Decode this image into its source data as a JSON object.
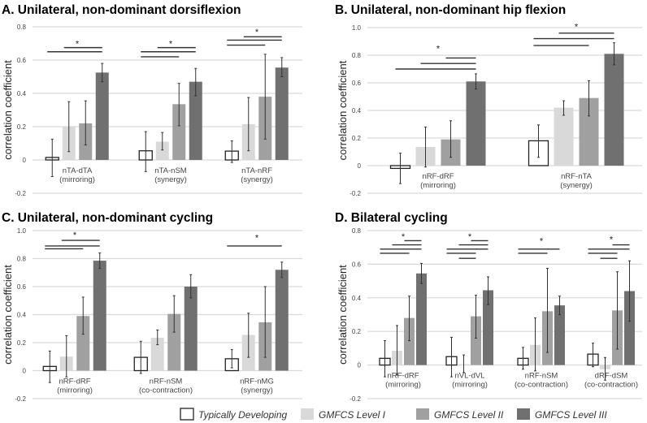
{
  "legend": [
    "Typically Developing",
    "GMFCS Level I",
    "GMFCS Level II",
    "GMFCS Level III"
  ],
  "colors": {
    "td_fill": "#ffffff",
    "td_stroke": "#222222",
    "l1": "#d9d9d9",
    "l2": "#a0a0a0",
    "l3": "#707070",
    "grid": "#d9d9d9",
    "err": "#333333",
    "sig": "#333333"
  },
  "chart_data": [
    {
      "type": "bar",
      "title": "A. Unilateral, non-dominant dorsiflexion",
      "ylabel": "correlation coefficient",
      "ylim": [
        -0.2,
        0.8
      ],
      "yticks": [
        "-0.2",
        "0",
        "0.2",
        "0.4",
        "0.6",
        "0.8"
      ],
      "grid": true,
      "groups": [
        {
          "label": "nTA-dTA",
          "sublabel": "(mirroring)",
          "values": [
            0.015,
            0.2,
            0.22,
            0.525
          ],
          "err": [
            [
              -0.1,
              0.125
            ],
            [
              0.05,
              0.35
            ],
            [
              0.09,
              0.355
            ],
            [
              0.47,
              0.58
            ]
          ],
          "sig": [
            [
              1,
              3,
              0.675
            ],
            [
              0,
              3,
              0.65
            ]
          ],
          "star": 0.7
        },
        {
          "label": "nTA-nSM",
          "sublabel": "(synergy)",
          "values": [
            0.055,
            0.11,
            0.335,
            0.47
          ],
          "err": [
            [
              -0.07,
              0.17
            ],
            [
              0.06,
              0.165
            ],
            [
              0.205,
              0.46
            ],
            [
              0.385,
              0.55
            ]
          ],
          "sig": [
            [
              1,
              3,
              0.675
            ],
            [
              0,
              3,
              0.65
            ],
            [
              0,
              2,
              0.62
            ]
          ],
          "star": 0.7
        },
        {
          "label": "nTA-nRF",
          "sublabel": "(synergy)",
          "values": [
            0.053,
            0.215,
            0.38,
            0.555
          ],
          "err": [
            [
              -0.015,
              0.115
            ],
            [
              0.055,
              0.375
            ],
            [
              0.125,
              0.635
            ],
            [
              0.5,
              0.615
            ]
          ],
          "sig": [
            [
              1,
              3,
              0.74
            ],
            [
              0,
              3,
              0.72
            ],
            [
              0,
              2,
              0.69
            ]
          ],
          "star": 0.77
        }
      ]
    },
    {
      "type": "bar",
      "title": "B. Unilateral, non-dominant hip flexion",
      "ylabel": "correlation coefficient",
      "ylim": [
        -0.2,
        1.0
      ],
      "yticks": [
        "-0.2",
        "0",
        "0.2",
        "0.4",
        "0.6",
        "0.8",
        "1.0"
      ],
      "grid": true,
      "groups": [
        {
          "label": "nRF-dRF",
          "sublabel": "(mirroring)",
          "values": [
            -0.02,
            0.135,
            0.19,
            0.61
          ],
          "err": [
            [
              -0.13,
              0.09
            ],
            [
              -0.01,
              0.28
            ],
            [
              0.06,
              0.325
            ],
            [
              0.555,
              0.665
            ]
          ],
          "sig": [
            [
              2,
              3,
              0.78
            ],
            [
              1,
              3,
              0.74
            ],
            [
              0,
              3,
              0.7
            ]
          ],
          "star": 0.85
        },
        {
          "label": "nRF-nTA",
          "sublabel": "(synergy)",
          "values": [
            0.18,
            0.42,
            0.49,
            0.81
          ],
          "err": [
            [
              0.06,
              0.295
            ],
            [
              0.365,
              0.47
            ],
            [
              0.36,
              0.615
            ],
            [
              0.73,
              0.89
            ]
          ],
          "sig": [
            [
              1,
              3,
              0.96
            ],
            [
              0,
              3,
              0.92
            ],
            [
              0,
              2,
              0.87
            ]
          ],
          "star": 1.01
        }
      ]
    },
    {
      "type": "bar",
      "title": "C. Unilateral, non-dominant cycling",
      "ylabel": "correlation coefficient",
      "ylim": [
        -0.2,
        1.0
      ],
      "yticks": [
        "-0.2",
        "0",
        "0.2",
        "0.4",
        "0.6",
        "0.8",
        "1.0"
      ],
      "grid": true,
      "groups": [
        {
          "label": "nRF-dRF",
          "sublabel": "(mirroring)",
          "values": [
            0.03,
            0.1,
            0.39,
            0.785
          ],
          "err": [
            [
              -0.085,
              0.14
            ],
            [
              -0.045,
              0.25
            ],
            [
              0.26,
              0.525
            ],
            [
              0.73,
              0.84
            ]
          ],
          "sig": [
            [
              1,
              3,
              0.93
            ],
            [
              0,
              3,
              0.89
            ],
            [
              0,
              2,
              0.87
            ]
          ],
          "star": 0.97
        },
        {
          "label": "nRF-nSM",
          "sublabel": "(co-contraction)",
          "values": [
            0.095,
            0.235,
            0.405,
            0.6
          ],
          "err": [
            [
              -0.02,
              0.21
            ],
            [
              0.185,
              0.29
            ],
            [
              0.275,
              0.535
            ],
            [
              0.52,
              0.685
            ]
          ],
          "sig": [],
          "star": null
        },
        {
          "label": "nRF-nMG",
          "sublabel": "(synergy)",
          "values": [
            0.085,
            0.255,
            0.345,
            0.72
          ],
          "err": [
            [
              0.02,
              0.15
            ],
            [
              0.095,
              0.41
            ],
            [
              0.095,
              0.6
            ],
            [
              0.665,
              0.775
            ]
          ],
          "sig": [
            [
              0,
              3,
              0.89
            ]
          ],
          "star": 0.95
        }
      ]
    },
    {
      "type": "bar",
      "title": "D. Bilateral cycling",
      "ylabel": "correlation coefficient",
      "ylim": [
        -0.2,
        0.8
      ],
      "yticks": [
        "-0.2",
        "0",
        "0.2",
        "0.4",
        "0.6",
        "0.8"
      ],
      "grid": true,
      "groups": [
        {
          "label": "nRF-dRF",
          "sublabel": "(mirroring)",
          "values": [
            0.04,
            0.085,
            0.28,
            0.545
          ],
          "err": [
            [
              -0.07,
              0.145
            ],
            [
              -0.06,
              0.235
            ],
            [
              0.145,
              0.41
            ],
            [
              0.485,
              0.605
            ]
          ],
          "sig": [
            [
              2,
              3,
              0.74
            ],
            [
              1,
              3,
              0.715
            ],
            [
              0,
              3,
              0.69
            ],
            [
              0,
              2,
              0.665
            ]
          ],
          "star": 0.765
        },
        {
          "label": "nVL-dVL",
          "sublabel": "(mirroring)",
          "values": [
            0.05,
            0.005,
            0.29,
            0.445
          ],
          "err": [
            [
              -0.07,
              0.165
            ],
            [
              -0.045,
              0.06
            ],
            [
              0.16,
              0.415
            ],
            [
              0.36,
              0.525
            ]
          ],
          "sig": [
            [
              2,
              3,
              0.74
            ],
            [
              1,
              3,
              0.715
            ],
            [
              0,
              3,
              0.69
            ],
            [
              0,
              2,
              0.665
            ],
            [
              1,
              2,
              0.635
            ]
          ],
          "star": 0.765
        },
        {
          "label": "nRF-nSM",
          "sublabel": "(co-contraction)",
          "values": [
            0.04,
            0.12,
            0.32,
            0.355
          ],
          "err": [
            [
              -0.025,
              0.105
            ],
            [
              -0.035,
              0.28
            ],
            [
              0.075,
              0.575
            ],
            [
              0.3,
              0.41
            ]
          ],
          "sig": [
            [
              0,
              3,
              0.69
            ],
            [
              0,
              2,
              0.665
            ]
          ],
          "star": 0.74
        },
        {
          "label": "dRF-dSM",
          "sublabel": "(co-contraction)",
          "values": [
            0.065,
            -0.025,
            0.325,
            0.44
          ],
          "err": [
            [
              -0.01,
              0.13
            ],
            [
              -0.09,
              0.045
            ],
            [
              0.095,
              0.555
            ],
            [
              0.26,
              0.62
            ]
          ],
          "sig": [
            [
              2,
              3,
              0.715
            ],
            [
              0,
              3,
              0.69
            ],
            [
              0,
              2,
              0.665
            ],
            [
              1,
              2,
              0.635
            ]
          ],
          "star": 0.75
        }
      ]
    }
  ]
}
